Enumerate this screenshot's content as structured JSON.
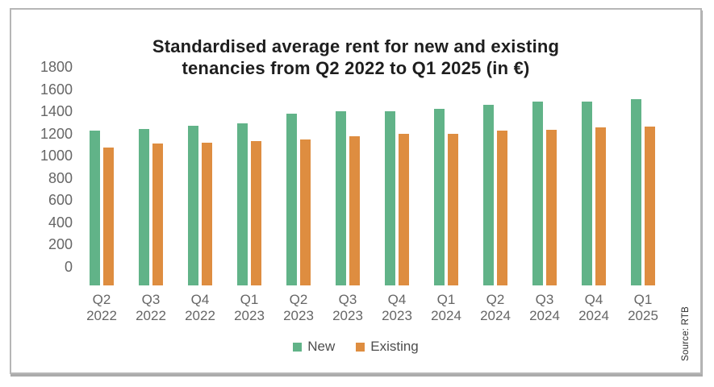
{
  "chart_data": {
    "type": "bar",
    "title_line1": "Standardised average rent for new and existing",
    "title_line2": "tenancies from Q2 2022 to Q1 2025 (in €)",
    "categories": [
      "Q2 2022",
      "Q3 2022",
      "Q4 2022",
      "Q1 2023",
      "Q2 2023",
      "Q3 2023",
      "Q4 2023",
      "Q1 2024",
      "Q2 2024",
      "Q3 2024",
      "Q4 2024",
      "Q1 2025"
    ],
    "series": [
      {
        "name": "New",
        "color": "#61b388",
        "values": [
          1391,
          1409,
          1436,
          1459,
          1544,
          1565,
          1567,
          1590,
          1625,
          1658,
          1656,
          1676
        ]
      },
      {
        "name": "Existing",
        "color": "#de8d40",
        "values": [
          1243,
          1275,
          1282,
          1297,
          1316,
          1341,
          1362,
          1364,
          1397,
          1400,
          1420,
          1430
        ]
      }
    ],
    "ylim": [
      0,
      1800
    ],
    "ytick_step": 200,
    "grid": false,
    "legend_position": "bottom-center",
    "source_note": "Source: RTB"
  },
  "colors": {
    "new_series": "#61b388",
    "existing_series": "#de8d40",
    "axis_text": "#666666",
    "title_text": "#1e1e1e",
    "frame_border": "#b6b6b6"
  }
}
